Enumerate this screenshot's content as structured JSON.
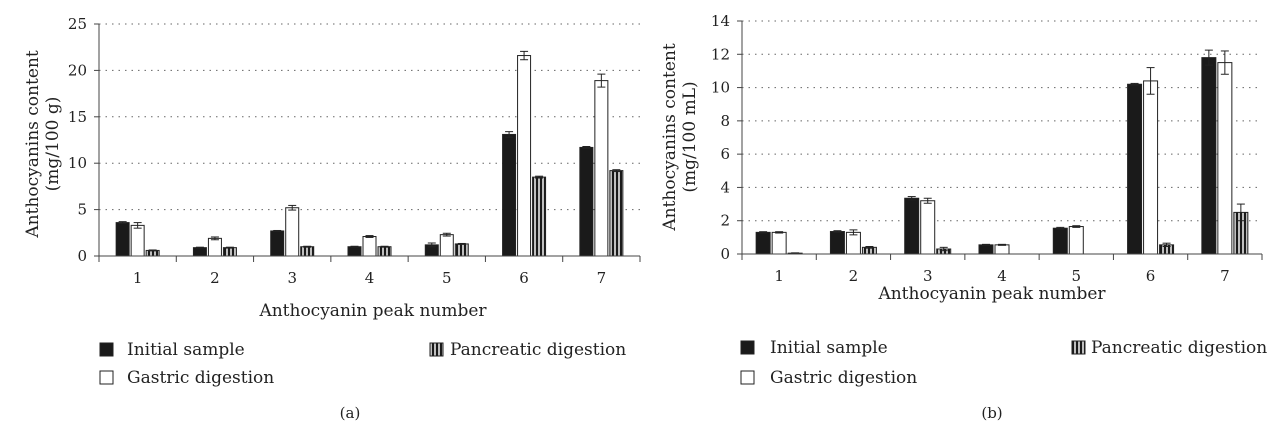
{
  "figure": {
    "panel_labels": [
      "(a)",
      "(b)"
    ]
  },
  "colors": {
    "initial": "#1a1a1a",
    "gastric": "#ffffff",
    "pancreatic_stripe_dark": "#1a1a1a",
    "pancreatic_stripe_light": "#bfbfbf",
    "outline": "#222222"
  },
  "chart_data": [
    {
      "type": "bar",
      "panel": "(a)",
      "title": "",
      "xlabel": "Anthocyanin peak number",
      "ylabel_line1": "Anthocyanins content",
      "ylabel_line2": "(mg/100 g)",
      "categories": [
        "1",
        "2",
        "3",
        "4",
        "5",
        "6",
        "7"
      ],
      "ylim": [
        0,
        25
      ],
      "yticks": [
        0,
        5,
        10,
        15,
        20,
        25
      ],
      "grid": true,
      "legend_position": "bottom",
      "series": [
        {
          "name": "Initial sample",
          "style": "solid",
          "values": [
            3.6,
            0.9,
            2.7,
            1.0,
            1.2,
            13.1,
            11.7
          ],
          "errors": [
            0.1,
            0.05,
            0.05,
            0.05,
            0.2,
            0.3,
            0.1
          ]
        },
        {
          "name": "Gastric digestion",
          "style": "white",
          "values": [
            3.3,
            1.9,
            5.2,
            2.1,
            2.3,
            21.6,
            18.9
          ],
          "errors": [
            0.3,
            0.15,
            0.25,
            0.1,
            0.15,
            0.45,
            0.7
          ]
        },
        {
          "name": "Pancreatic digestion",
          "style": "striped",
          "values": [
            0.6,
            0.9,
            1.0,
            1.0,
            1.3,
            8.5,
            9.2
          ],
          "errors": [
            0.05,
            0.05,
            0.05,
            0.05,
            0.05,
            0.1,
            0.1
          ]
        }
      ]
    },
    {
      "type": "bar",
      "panel": "(b)",
      "title": "",
      "xlabel": "Anthocyanin peak number",
      "ylabel_line1": "Anthocyanins content",
      "ylabel_line2": "(mg/100 mL)",
      "categories": [
        "1",
        "2",
        "3",
        "4",
        "5",
        "6",
        "7"
      ],
      "ylim": [
        0,
        14
      ],
      "yticks": [
        0,
        2,
        4,
        6,
        8,
        10,
        12,
        14
      ],
      "grid": true,
      "legend_position": "bottom",
      "series": [
        {
          "name": "Initial sample",
          "style": "solid",
          "values": [
            1.3,
            1.35,
            3.35,
            0.55,
            1.55,
            10.2,
            11.8
          ],
          "errors": [
            0.04,
            0.05,
            0.1,
            0.03,
            0.05,
            0.05,
            0.45
          ]
        },
        {
          "name": "Gastric digestion",
          "style": "white",
          "values": [
            1.3,
            1.3,
            3.2,
            0.55,
            1.65,
            10.4,
            11.5
          ],
          "errors": [
            0.04,
            0.15,
            0.15,
            0.03,
            0.05,
            0.8,
            0.7
          ]
        },
        {
          "name": "Pancreatic digestion",
          "style": "striped",
          "values": [
            0.05,
            0.4,
            0.3,
            0.0,
            0.0,
            0.55,
            2.5
          ],
          "errors": [
            0.02,
            0.05,
            0.1,
            0.0,
            0.0,
            0.1,
            0.5
          ]
        }
      ]
    }
  ]
}
